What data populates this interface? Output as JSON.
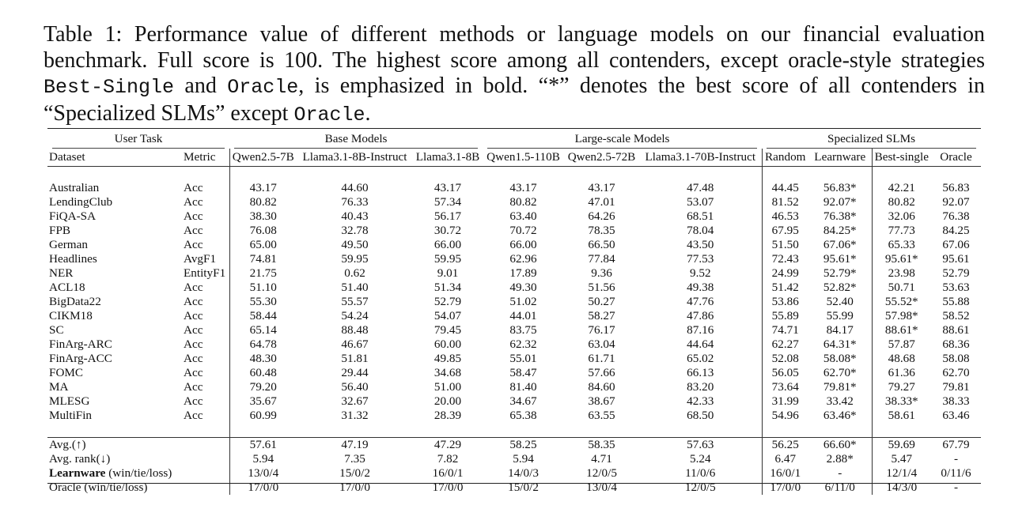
{
  "caption": {
    "p1": "Table 1: Performance value of different methods or language models on our financial evaluation benchmark. Full score is 100. The highest score among all contenders, except oracle-style strategies ",
    "code1": "Best-Single",
    "p2": " and ",
    "code2": "Oracle",
    "p3": ", is emphasized in bold. “*” denotes the best score of all contenders in “Specialized SLMs” except ",
    "code3": "Oracle",
    "p4": "."
  },
  "groups": {
    "user_task": "User Task",
    "base": "Base Models",
    "large": "Large-scale Models",
    "special": "Specialized SLMs"
  },
  "headers": [
    "Dataset",
    "Metric",
    "Qwen2.5-7B",
    "Llama3.1-8B-Instruct",
    "Llama3.1-8B",
    "Qwen1.5-110B",
    "Qwen2.5-72B",
    "Llama3.1-70B-Instruct",
    "Random",
    "Learnware",
    "Best-single",
    "Oracle"
  ],
  "rows": [
    {
      "dataset": "Australian",
      "metric": "Acc",
      "values": [
        "43.17",
        "44.60",
        "43.17",
        "43.17",
        "43.17",
        "47.48",
        "44.45",
        "56.83*",
        "42.21",
        "56.83"
      ],
      "bold": [
        7
      ]
    },
    {
      "dataset": "LendingClub",
      "metric": "Acc",
      "values": [
        "80.82",
        "76.33",
        "57.34",
        "80.82",
        "47.01",
        "53.07",
        "81.52",
        "92.07*",
        "80.82",
        "92.07"
      ],
      "bold": [
        7
      ]
    },
    {
      "dataset": "FiQA-SA",
      "metric": "Acc",
      "values": [
        "38.30",
        "40.43",
        "56.17",
        "63.40",
        "64.26",
        "68.51",
        "46.53",
        "76.38*",
        "32.06",
        "76.38"
      ],
      "bold": [
        7
      ]
    },
    {
      "dataset": "FPB",
      "metric": "Acc",
      "values": [
        "76.08",
        "32.78",
        "30.72",
        "70.72",
        "78.35",
        "78.04",
        "67.95",
        "84.25*",
        "77.73",
        "84.25"
      ],
      "bold": [
        7
      ]
    },
    {
      "dataset": "German",
      "metric": "Acc",
      "values": [
        "65.00",
        "49.50",
        "66.00",
        "66.00",
        "66.50",
        "43.50",
        "51.50",
        "67.06*",
        "65.33",
        "67.06"
      ],
      "bold": [
        7
      ]
    },
    {
      "dataset": "Headlines",
      "metric": "AvgF1",
      "values": [
        "74.81",
        "59.95",
        "59.95",
        "62.96",
        "77.84",
        "77.53",
        "72.43",
        "95.61*",
        "95.61*",
        "95.61"
      ],
      "bold": [
        7
      ]
    },
    {
      "dataset": "NER",
      "metric": "EntityF1",
      "values": [
        "21.75",
        "0.62",
        "9.01",
        "17.89",
        "9.36",
        "9.52",
        "24.99",
        "52.79*",
        "23.98",
        "52.79"
      ],
      "bold": [
        7
      ]
    },
    {
      "dataset": "ACL18",
      "metric": "Acc",
      "values": [
        "51.10",
        "51.40",
        "51.34",
        "49.30",
        "51.56",
        "49.38",
        "51.42",
        "52.82*",
        "50.71",
        "53.63"
      ],
      "bold": [
        7
      ]
    },
    {
      "dataset": "BigData22",
      "metric": "Acc",
      "values": [
        "55.30",
        "55.57",
        "52.79",
        "51.02",
        "50.27",
        "47.76",
        "53.86",
        "52.40",
        "55.52*",
        "55.88"
      ],
      "bold": [
        1
      ]
    },
    {
      "dataset": "CIKM18",
      "metric": "Acc",
      "values": [
        "58.44",
        "54.24",
        "54.07",
        "44.01",
        "58.27",
        "47.86",
        "55.89",
        "55.99",
        "57.98*",
        "58.52"
      ],
      "bold": [
        0
      ]
    },
    {
      "dataset": "SC",
      "metric": "Acc",
      "values": [
        "65.14",
        "88.48",
        "79.45",
        "83.75",
        "76.17",
        "87.16",
        "74.71",
        "84.17",
        "88.61*",
        "88.61"
      ],
      "bold": [
        5
      ]
    },
    {
      "dataset": "FinArg-ARC",
      "metric": "Acc",
      "values": [
        "64.78",
        "46.67",
        "60.00",
        "62.32",
        "63.04",
        "44.64",
        "62.27",
        "64.31*",
        "57.87",
        "68.36"
      ],
      "bold": [
        0
      ]
    },
    {
      "dataset": "FinArg-ACC",
      "metric": "Acc",
      "values": [
        "48.30",
        "51.81",
        "49.85",
        "55.01",
        "61.71",
        "65.02",
        "52.08",
        "58.08*",
        "48.68",
        "58.08"
      ],
      "bold": [
        5
      ]
    },
    {
      "dataset": "FOMC",
      "metric": "Acc",
      "values": [
        "60.48",
        "29.44",
        "34.68",
        "58.47",
        "57.66",
        "66.13",
        "56.05",
        "62.70*",
        "61.36",
        "62.70"
      ],
      "bold": [
        5
      ]
    },
    {
      "dataset": "MA",
      "metric": "Acc",
      "values": [
        "79.20",
        "56.40",
        "51.00",
        "81.40",
        "84.60",
        "83.20",
        "73.64",
        "79.81*",
        "79.27",
        "79.81"
      ],
      "bold": [
        4
      ]
    },
    {
      "dataset": "MLESG",
      "metric": "Acc",
      "values": [
        "35.67",
        "32.67",
        "20.00",
        "34.67",
        "38.67",
        "42.33",
        "31.99",
        "33.42",
        "38.33*",
        "38.33"
      ],
      "bold": [
        5
      ]
    },
    {
      "dataset": "MultiFin",
      "metric": "Acc",
      "values": [
        "60.99",
        "31.32",
        "28.39",
        "65.38",
        "63.55",
        "68.50",
        "54.96",
        "63.46*",
        "58.61",
        "63.46"
      ],
      "bold": [
        5
      ]
    }
  ],
  "summary": [
    {
      "label": "Avg.(↑)",
      "label_bold": "",
      "values": [
        "57.61",
        "47.19",
        "47.29",
        "58.25",
        "58.35",
        "57.63",
        "56.25",
        "66.60*",
        "59.69",
        "67.79"
      ],
      "bold": [
        7
      ]
    },
    {
      "label": "Avg. rank(↓)",
      "label_bold": "",
      "values": [
        "5.94",
        "7.35",
        "7.82",
        "5.94",
        "4.71",
        "5.24",
        "6.47",
        "2.88*",
        "5.47",
        "-"
      ],
      "bold": [
        7
      ]
    },
    {
      "label": " (win/tie/loss)",
      "label_bold": "Learnware",
      "values": [
        "13/0/4",
        "15/0/2",
        "16/0/1",
        "14/0/3",
        "12/0/5",
        "11/0/6",
        "16/0/1",
        "-",
        "12/1/4",
        "0/11/6"
      ],
      "bold": []
    },
    {
      "label": "Oracle (win/tie/loss)",
      "label_bold": "",
      "values": [
        "17/0/0",
        "17/0/0",
        "17/0/0",
        "15/0/2",
        "13/0/4",
        "12/0/5",
        "17/0/0",
        "6/11/0",
        "14/3/0",
        "-"
      ],
      "bold": []
    }
  ]
}
